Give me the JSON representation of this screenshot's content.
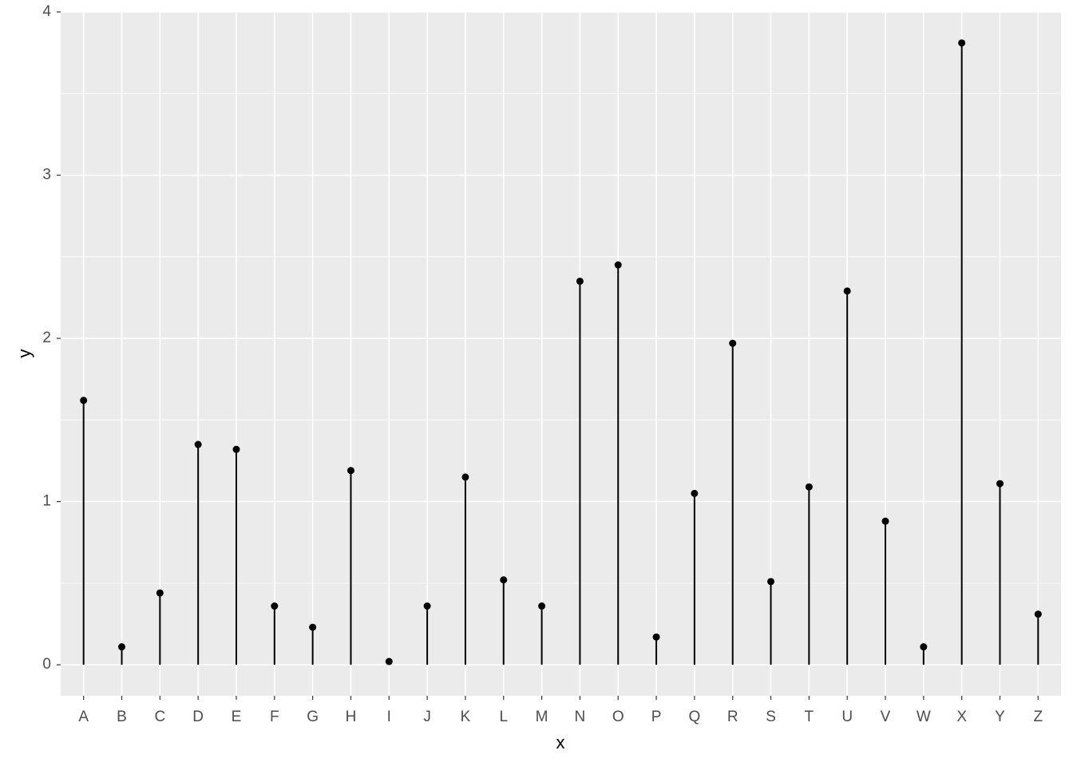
{
  "chart_data": {
    "type": "lollipop",
    "x_label": "x",
    "y_label": "y",
    "categories": [
      "A",
      "B",
      "C",
      "D",
      "E",
      "F",
      "G",
      "H",
      "I",
      "J",
      "K",
      "L",
      "M",
      "N",
      "O",
      "P",
      "Q",
      "R",
      "S",
      "T",
      "U",
      "V",
      "W",
      "X",
      "Y",
      "Z"
    ],
    "values": [
      1.62,
      0.11,
      0.44,
      1.35,
      1.32,
      0.36,
      0.23,
      1.19,
      0.02,
      0.36,
      1.15,
      0.52,
      0.36,
      2.35,
      2.45,
      0.17,
      1.05,
      1.97,
      0.51,
      1.09,
      2.29,
      0.88,
      0.11,
      3.81,
      1.11,
      0.31
    ],
    "color": "#000000",
    "ylim": [
      -0.19,
      4.0
    ],
    "yticks": [
      0,
      1,
      2,
      3,
      4
    ],
    "grid": true
  }
}
